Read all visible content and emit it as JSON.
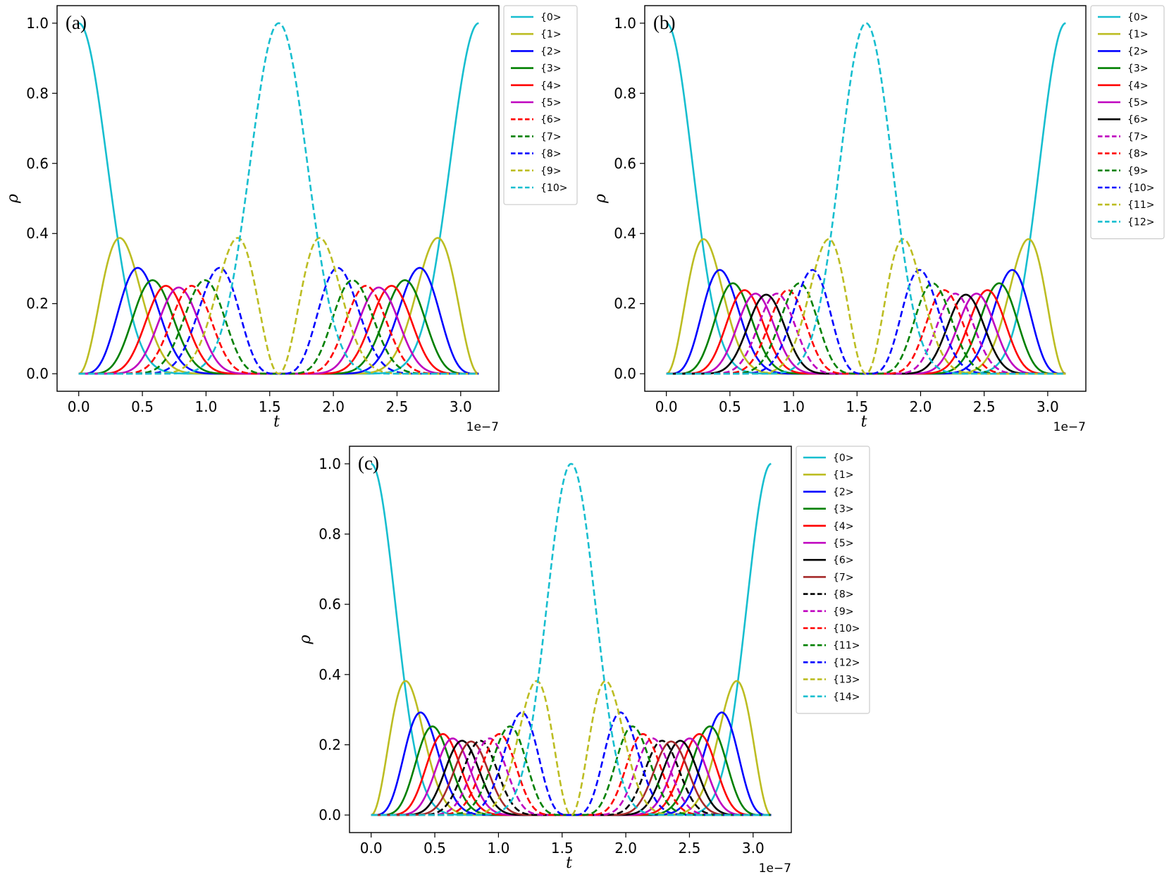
{
  "figure": {
    "background": "#ffffff",
    "color_map": {
      "c": "#17becf",
      "y": "#bcbd22",
      "b": "#0000ff",
      "g": "#008000",
      "r": "#ff0000",
      "m": "#bf00bf",
      "k": "#000000",
      "brown": "#a52a2a"
    }
  },
  "chart_data": [
    {
      "type": "line",
      "panel_label": "(a)",
      "xlabel": "t",
      "ylabel": "ρ",
      "x_offset_label": "1e−7",
      "xlim": [
        -0.17,
        3.3
      ],
      "ylim": [
        -0.05,
        1.05
      ],
      "x_range": [
        0.0,
        3.1416
      ],
      "x_ticks": [
        0.0,
        0.5,
        1.0,
        1.5,
        2.0,
        2.5,
        3.0
      ],
      "x_tick_labels": [
        "0.0",
        "0.5",
        "1.0",
        "1.5",
        "2.0",
        "2.5",
        "3.0"
      ],
      "y_ticks": [
        0.0,
        0.2,
        0.4,
        0.6,
        0.8,
        1.0
      ],
      "y_tick_labels": [
        "0.0",
        "0.2",
        "0.4",
        "0.6",
        "0.8",
        "1.0"
      ],
      "grid": false,
      "legend_position": "outside-right",
      "N": 10,
      "model": "rho_k(t) = C(N,k) * sin(pi*t/T)^(2k) * cos(pi*t/T)^(2(N-k)), T = 3.1416e-7",
      "series": [
        {
          "name": "{0>",
          "k": 0,
          "color": "c",
          "dash": "solid"
        },
        {
          "name": "{1>",
          "k": 1,
          "color": "y",
          "dash": "solid"
        },
        {
          "name": "{2>",
          "k": 2,
          "color": "b",
          "dash": "solid"
        },
        {
          "name": "{3>",
          "k": 3,
          "color": "g",
          "dash": "solid"
        },
        {
          "name": "{4>",
          "k": 4,
          "color": "r",
          "dash": "solid"
        },
        {
          "name": "{5>",
          "k": 5,
          "color": "m",
          "dash": "solid"
        },
        {
          "name": "{6>",
          "k": 6,
          "color": "r",
          "dash": "dashed"
        },
        {
          "name": "{7>",
          "k": 7,
          "color": "g",
          "dash": "dashed"
        },
        {
          "name": "{8>",
          "k": 8,
          "color": "b",
          "dash": "dashed"
        },
        {
          "name": "{9>",
          "k": 9,
          "color": "y",
          "dash": "dashed"
        },
        {
          "name": "{10>",
          "k": 10,
          "color": "c",
          "dash": "dashed"
        }
      ]
    },
    {
      "type": "line",
      "panel_label": "(b)",
      "xlabel": "t",
      "ylabel": "ρ",
      "x_offset_label": "1e−7",
      "xlim": [
        -0.17,
        3.3
      ],
      "ylim": [
        -0.05,
        1.05
      ],
      "x_range": [
        0.0,
        3.1416
      ],
      "x_ticks": [
        0.0,
        0.5,
        1.0,
        1.5,
        2.0,
        2.5,
        3.0
      ],
      "x_tick_labels": [
        "0.0",
        "0.5",
        "1.0",
        "1.5",
        "2.0",
        "2.5",
        "3.0"
      ],
      "y_ticks": [
        0.0,
        0.2,
        0.4,
        0.6,
        0.8,
        1.0
      ],
      "y_tick_labels": [
        "0.0",
        "0.2",
        "0.4",
        "0.6",
        "0.8",
        "1.0"
      ],
      "grid": false,
      "legend_position": "outside-right",
      "N": 12,
      "model": "rho_k(t) = C(N,k) * sin(pi*t/T)^(2k) * cos(pi*t/T)^(2(N-k)), T = 3.1416e-7",
      "series": [
        {
          "name": "{0>",
          "k": 0,
          "color": "c",
          "dash": "solid"
        },
        {
          "name": "{1>",
          "k": 1,
          "color": "y",
          "dash": "solid"
        },
        {
          "name": "{2>",
          "k": 2,
          "color": "b",
          "dash": "solid"
        },
        {
          "name": "{3>",
          "k": 3,
          "color": "g",
          "dash": "solid"
        },
        {
          "name": "{4>",
          "k": 4,
          "color": "r",
          "dash": "solid"
        },
        {
          "name": "{5>",
          "k": 5,
          "color": "m",
          "dash": "solid"
        },
        {
          "name": "{6>",
          "k": 6,
          "color": "k",
          "dash": "solid"
        },
        {
          "name": "{7>",
          "k": 7,
          "color": "m",
          "dash": "dashed"
        },
        {
          "name": "{8>",
          "k": 8,
          "color": "r",
          "dash": "dashed"
        },
        {
          "name": "{9>",
          "k": 9,
          "color": "g",
          "dash": "dashed"
        },
        {
          "name": "{10>",
          "k": 10,
          "color": "b",
          "dash": "dashed"
        },
        {
          "name": "{11>",
          "k": 11,
          "color": "y",
          "dash": "dashed"
        },
        {
          "name": "{12>",
          "k": 12,
          "color": "c",
          "dash": "dashed"
        }
      ]
    },
    {
      "type": "line",
      "panel_label": "(c)",
      "xlabel": "t",
      "ylabel": "ρ",
      "x_offset_label": "1e−7",
      "xlim": [
        -0.17,
        3.3
      ],
      "ylim": [
        -0.05,
        1.05
      ],
      "x_range": [
        0.0,
        3.1416
      ],
      "x_ticks": [
        0.0,
        0.5,
        1.0,
        1.5,
        2.0,
        2.5,
        3.0
      ],
      "x_tick_labels": [
        "0.0",
        "0.5",
        "1.0",
        "1.5",
        "2.0",
        "2.5",
        "3.0"
      ],
      "y_ticks": [
        0.0,
        0.2,
        0.4,
        0.6,
        0.8,
        1.0
      ],
      "y_tick_labels": [
        "0.0",
        "0.2",
        "0.4",
        "0.6",
        "0.8",
        "1.0"
      ],
      "grid": false,
      "legend_position": "outside-right",
      "N": 14,
      "model": "rho_k(t) = C(N,k) * sin(pi*t/T)^(2k) * cos(pi*t/T)^(2(N-k)), T = 3.1416e-7",
      "series": [
        {
          "name": "{0>",
          "k": 0,
          "color": "c",
          "dash": "solid"
        },
        {
          "name": "{1>",
          "k": 1,
          "color": "y",
          "dash": "solid"
        },
        {
          "name": "{2>",
          "k": 2,
          "color": "b",
          "dash": "solid"
        },
        {
          "name": "{3>",
          "k": 3,
          "color": "g",
          "dash": "solid"
        },
        {
          "name": "{4>",
          "k": 4,
          "color": "r",
          "dash": "solid"
        },
        {
          "name": "{5>",
          "k": 5,
          "color": "m",
          "dash": "solid"
        },
        {
          "name": "{6>",
          "k": 6,
          "color": "k",
          "dash": "solid"
        },
        {
          "name": "{7>",
          "k": 7,
          "color": "brown",
          "dash": "solid"
        },
        {
          "name": "{8>",
          "k": 8,
          "color": "k",
          "dash": "dashed"
        },
        {
          "name": "{9>",
          "k": 9,
          "color": "m",
          "dash": "dashed"
        },
        {
          "name": "{10>",
          "k": 10,
          "color": "r",
          "dash": "dashed"
        },
        {
          "name": "{11>",
          "k": 11,
          "color": "g",
          "dash": "dashed"
        },
        {
          "name": "{12>",
          "k": 12,
          "color": "b",
          "dash": "dashed"
        },
        {
          "name": "{13>",
          "k": 13,
          "color": "y",
          "dash": "dashed"
        },
        {
          "name": "{14>",
          "k": 14,
          "color": "c",
          "dash": "dashed"
        }
      ]
    }
  ]
}
